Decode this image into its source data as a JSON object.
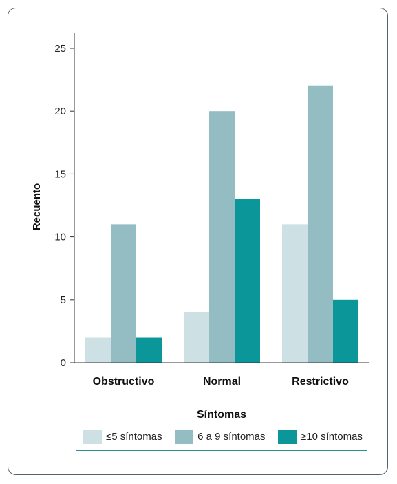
{
  "colors": [
    "#cde0e3",
    "#93bcc3",
    "#0b9699"
  ],
  "chart_data": {
    "type": "bar",
    "categories": [
      "Obstructivo",
      "Normal",
      "Restrictivo"
    ],
    "series": [
      {
        "name": "≤5 síntomas",
        "values": [
          2,
          4,
          11
        ]
      },
      {
        "name": "6 a 9 síntomas",
        "values": [
          11,
          20,
          22
        ]
      },
      {
        "name": "≥10 síntomas",
        "values": [
          2,
          13,
          5
        ]
      }
    ],
    "ylabel": "Recuento",
    "ylim": [
      0,
      25
    ],
    "yticks": [
      0,
      5,
      10,
      15,
      20,
      25
    ],
    "grid": false,
    "legend": {
      "title": "Síntomas",
      "placement": "bottom"
    }
  }
}
